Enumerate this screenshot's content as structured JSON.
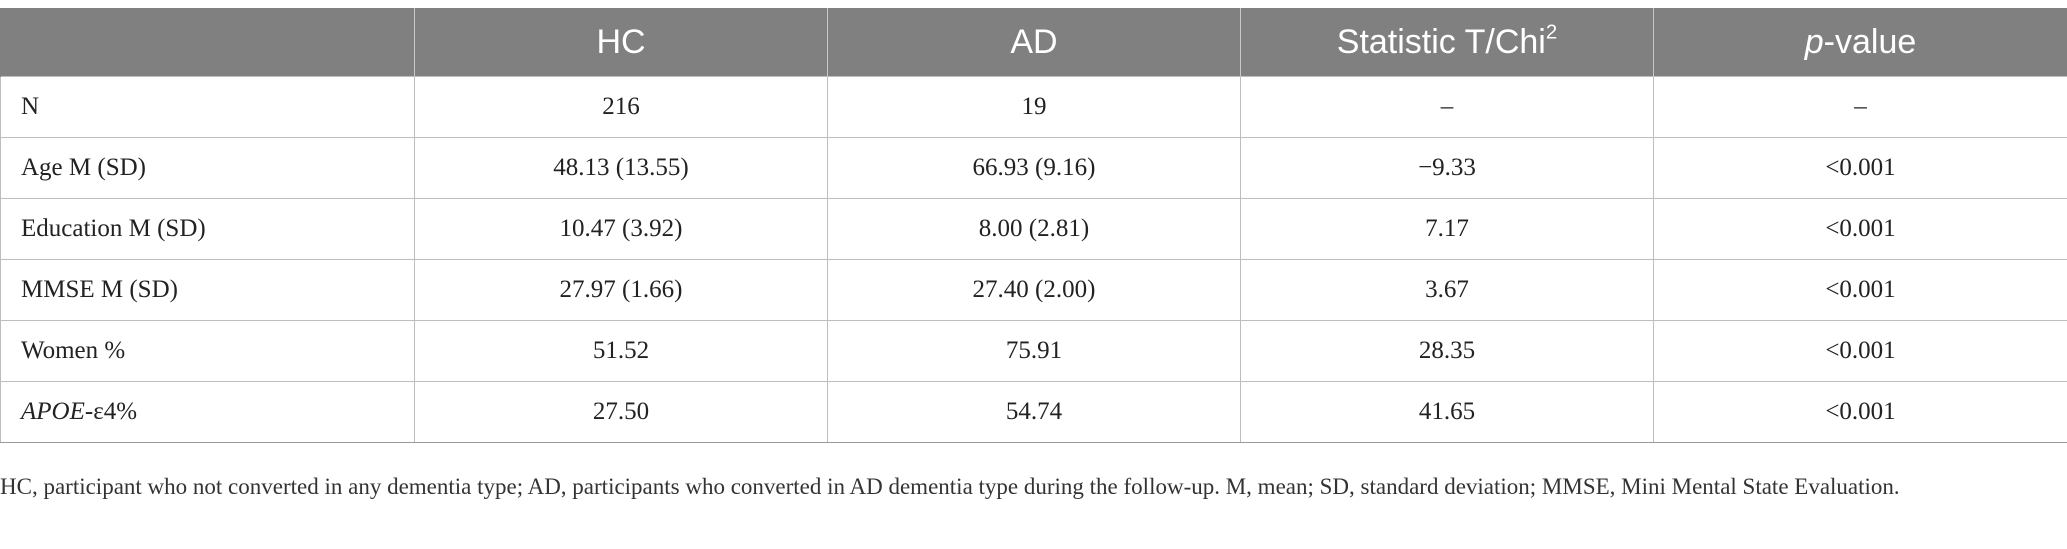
{
  "table": {
    "headers": {
      "col0": "",
      "col1": "HC",
      "col2": "AD",
      "col3_main": "Statistic T/Chi",
      "col3_sup": "2",
      "col4_italic": "p",
      "col4_rest": "-value"
    },
    "rows": [
      {
        "label": "N",
        "hc": "216",
        "ad": "19",
        "stat": "–",
        "p": "–"
      },
      {
        "label": "Age M (SD)",
        "hc": "48.13 (13.55)",
        "ad": "66.93 (9.16)",
        "stat": "−9.33",
        "p": "<0.001"
      },
      {
        "label": "Education M (SD)",
        "hc": "10.47 (3.92)",
        "ad": "8.00 (2.81)",
        "stat": "7.17",
        "p": "<0.001"
      },
      {
        "label": "MMSE M (SD)",
        "hc": "27.97 (1.66)",
        "ad": "27.40 (2.00)",
        "stat": "3.67",
        "p": "<0.001"
      },
      {
        "label": "Women %",
        "hc": "51.52",
        "ad": "75.91",
        "stat": "28.35",
        "p": "<0.001"
      },
      {
        "label_italic": "APOE",
        "label_rest": "-ε4%",
        "hc": "27.50",
        "ad": "54.74",
        "stat": "41.65",
        "p": "<0.001"
      }
    ]
  },
  "footnote": "HC, participant who not converted in any dementia type; AD, participants who converted in AD dementia type during the follow-up. M, mean; SD, standard deviation; MMSE, Mini Mental State Evaluation."
}
